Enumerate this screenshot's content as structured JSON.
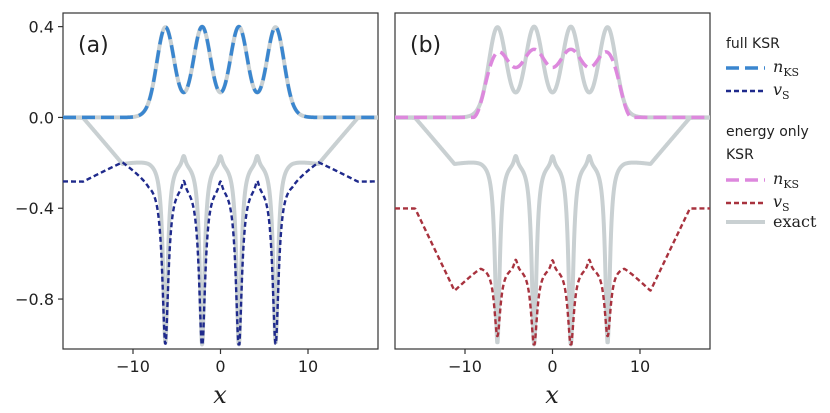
{
  "colors": {
    "n_full": "#3a86cf",
    "v_full": "#1f2a8c",
    "n_energy": "#dd88dd",
    "v_energy": "#a8323e",
    "exact": "#c9d0d2"
  },
  "chart_data": [
    {
      "type": "line",
      "panel_label": "(a)",
      "xlabel": "x",
      "xlim": [
        -18,
        18
      ],
      "ylim": [
        -1.02,
        0.46
      ],
      "xticks": [
        -10,
        0,
        10
      ],
      "xtick_labels": [
        "−10",
        "0",
        "10"
      ],
      "yticks": [
        0.4,
        0.0,
        -0.4,
        -0.8
      ],
      "ytick_labels": [
        "0.4",
        "0.0",
        "−0.4",
        "−0.8"
      ],
      "atoms": [
        -6.3,
        -2.1,
        2.1,
        6.3
      ],
      "series": [
        {
          "name": "exact density",
          "legend": "exact",
          "color_key": "exact",
          "style": "solid",
          "kind": "density",
          "peak": 0.4,
          "trough": 0.11,
          "width": 0.95
        },
        {
          "name": "exact potential",
          "legend": "exact",
          "color_key": "exact",
          "style": "solid",
          "kind": "potential",
          "tail": 0.0,
          "near": -0.2,
          "wells": [
            -0.99,
            -1.0,
            -1.0,
            -0.99
          ],
          "between": -0.18
        },
        {
          "name": "n_KS (full KSR)",
          "legend": "n_KS",
          "color_key": "n_full",
          "style": "dashed",
          "kind": "density",
          "peak": 0.4,
          "trough": 0.11,
          "width": 0.95
        },
        {
          "name": "v_S (full KSR)",
          "legend": "v_S",
          "color_key": "v_full",
          "style": "dotted",
          "kind": "potential",
          "tail": -0.28,
          "near": -0.19,
          "wells": [
            -0.99,
            -1.0,
            -1.0,
            -0.99
          ],
          "between": -0.27
        }
      ]
    },
    {
      "type": "line",
      "panel_label": "(b)",
      "xlabel": "x",
      "xlim": [
        -18,
        18
      ],
      "ylim": [
        -1.02,
        0.46
      ],
      "xticks": [
        -10,
        0,
        10
      ],
      "xtick_labels": [
        "−10",
        "0",
        "10"
      ],
      "atoms": [
        -6.3,
        -2.1,
        2.1,
        6.3
      ],
      "series": [
        {
          "name": "exact density",
          "legend": "exact",
          "color_key": "exact",
          "style": "solid",
          "kind": "density",
          "peak": 0.4,
          "trough": 0.11,
          "width": 0.95
        },
        {
          "name": "exact potential",
          "legend": "exact",
          "color_key": "exact",
          "style": "solid",
          "kind": "potential",
          "tail": 0.0,
          "near": -0.2,
          "wells": [
            -0.99,
            -1.0,
            -1.0,
            -0.99
          ],
          "between": -0.18
        },
        {
          "name": "n_KS (energy only KSR)",
          "legend": "n_KS",
          "color_key": "n_energy",
          "style": "dashed",
          "kind": "density",
          "peak": 0.3,
          "trough": 0.22,
          "width": 1.6
        },
        {
          "name": "v_S (energy only KSR)",
          "legend": "v_S",
          "color_key": "v_energy",
          "style": "dotted",
          "kind": "potential",
          "tail": -0.4,
          "near": -0.76,
          "wells": [
            -0.96,
            -1.0,
            -1.0,
            -0.96
          ],
          "between": -0.65
        }
      ]
    }
  ],
  "legend": {
    "group1_title": "full KSR",
    "group1_items": [
      {
        "symbol": "n",
        "sub": "KS",
        "color_key": "n_full",
        "style": "dashed"
      },
      {
        "symbol": "v",
        "sub": "S",
        "color_key": "v_full",
        "style": "dotted"
      }
    ],
    "group2_title_line1": "energy only",
    "group2_title_line2": "KSR",
    "group2_items": [
      {
        "symbol": "n",
        "sub": "KS",
        "color_key": "n_energy",
        "style": "dashed"
      },
      {
        "symbol": "v",
        "sub": "S",
        "color_key": "v_energy",
        "style": "dotted"
      }
    ],
    "exact_label": "exact"
  }
}
